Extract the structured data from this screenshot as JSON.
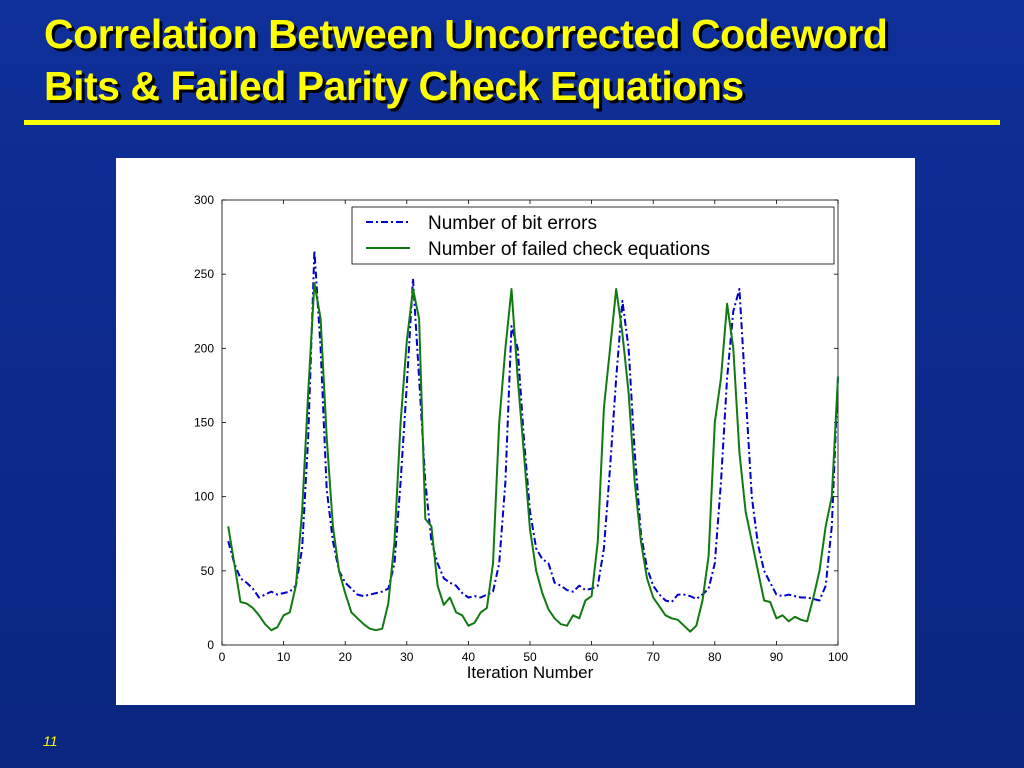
{
  "slide": {
    "title_line1": "Correlation Between Uncorrected Codeword",
    "title_line2": "Bits & Failed Parity Check Equations",
    "page_number": "11",
    "colors": {
      "background": "#0b2a8a",
      "title": "#ffff00",
      "rule": "#ffff00",
      "panel": "#ffffff"
    }
  },
  "chart_data": {
    "type": "line",
    "title": "",
    "xlabel": "Iteration Number",
    "ylabel": "",
    "xlim": [
      0,
      100
    ],
    "ylim": [
      0,
      300
    ],
    "xticks": [
      0,
      10,
      20,
      30,
      40,
      50,
      60,
      70,
      80,
      90,
      100
    ],
    "yticks": [
      0,
      50,
      100,
      150,
      200,
      250,
      300
    ],
    "grid": false,
    "legend_position": "top-right",
    "x": [
      1,
      2,
      3,
      4,
      5,
      6,
      7,
      8,
      9,
      10,
      11,
      12,
      13,
      14,
      15,
      16,
      17,
      18,
      19,
      20,
      21,
      22,
      23,
      24,
      25,
      26,
      27,
      28,
      29,
      30,
      31,
      32,
      33,
      34,
      35,
      36,
      37,
      38,
      39,
      40,
      41,
      42,
      43,
      44,
      45,
      46,
      47,
      48,
      49,
      50,
      51,
      52,
      53,
      54,
      55,
      56,
      57,
      58,
      59,
      60,
      61,
      62,
      63,
      64,
      65,
      66,
      67,
      68,
      69,
      70,
      71,
      72,
      73,
      74,
      75,
      76,
      77,
      78,
      79,
      80,
      81,
      82,
      83,
      84,
      85,
      86,
      87,
      88,
      89,
      90,
      91,
      92,
      93,
      94,
      95,
      96,
      97,
      98,
      99,
      100
    ],
    "series": [
      {
        "name": "Number of bit errors",
        "color": "#0000cc",
        "style": "dash-dot",
        "values": [
          70,
          55,
          45,
          42,
          38,
          32,
          34,
          36,
          34,
          35,
          36,
          40,
          65,
          140,
          266,
          200,
          105,
          70,
          50,
          42,
          38,
          34,
          33,
          34,
          35,
          36,
          38,
          55,
          110,
          175,
          247,
          180,
          110,
          70,
          55,
          45,
          42,
          40,
          35,
          32,
          33,
          32,
          34,
          36,
          55,
          110,
          215,
          200,
          140,
          90,
          65,
          58,
          55,
          42,
          40,
          37,
          36,
          40,
          37,
          38,
          40,
          65,
          120,
          180,
          232,
          200,
          130,
          75,
          52,
          40,
          34,
          30,
          29,
          34,
          34,
          33,
          31,
          34,
          38,
          55,
          110,
          180,
          225,
          240,
          170,
          100,
          68,
          50,
          42,
          34,
          33,
          34,
          33,
          32,
          32,
          31,
          30,
          40,
          80,
          181
        ]
      },
      {
        "name": "Number of failed check equations",
        "color": "#117a11",
        "style": "solid",
        "values": [
          80,
          55,
          29,
          28,
          25,
          20,
          14,
          10,
          12,
          20,
          22,
          40,
          90,
          170,
          244,
          220,
          140,
          80,
          50,
          35,
          22,
          18,
          14,
          11,
          10,
          11,
          28,
          70,
          150,
          205,
          240,
          220,
          85,
          80,
          40,
          27,
          32,
          22,
          20,
          13,
          15,
          22,
          25,
          55,
          150,
          200,
          240,
          180,
          130,
          78,
          50,
          35,
          24,
          18,
          14,
          13,
          20,
          18,
          30,
          33,
          70,
          160,
          200,
          240,
          210,
          170,
          110,
          70,
          45,
          32,
          26,
          20,
          18,
          17,
          13,
          9,
          13,
          30,
          60,
          150,
          180,
          230,
          200,
          130,
          90,
          70,
          50,
          30,
          29,
          18,
          20,
          16,
          19,
          17,
          16,
          32,
          50,
          80,
          100,
          181
        ]
      }
    ]
  }
}
